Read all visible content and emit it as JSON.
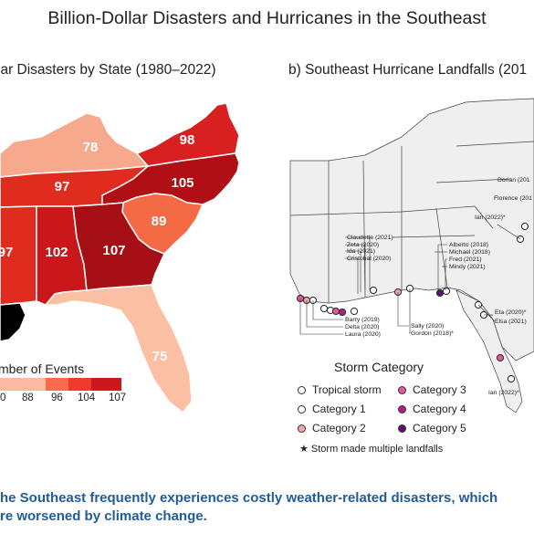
{
  "header": {
    "title": "Billion-Dollar Disasters and Hurricanes in the Southeast"
  },
  "panel_a": {
    "title": "lar Disasters by State (1980–2022)",
    "states": [
      {
        "state": "KY",
        "value": "78",
        "color": "#f6a98c"
      },
      {
        "state": "VA",
        "value": "98",
        "color": "#d7201f"
      },
      {
        "state": "TN",
        "value": "97",
        "color": "#e02c1f"
      },
      {
        "state": "NC",
        "value": "105",
        "color": "#b00f16"
      },
      {
        "state": "SC",
        "value": "89",
        "color": "#f46a45"
      },
      {
        "state": "MS",
        "value": "97",
        "color": "#e02c1f"
      },
      {
        "state": "AL",
        "value": "102",
        "color": "#c9171a"
      },
      {
        "state": "GA",
        "value": "107",
        "color": "#a60f15"
      },
      {
        "state": "FL",
        "value": "75",
        "color": "#fbbfa4"
      }
    ],
    "legend": {
      "title": "mber of Events",
      "ticks": [
        "0",
        "88",
        "96",
        "104",
        "107"
      ]
    }
  },
  "panel_b": {
    "title": "b)  Southeast Hurricane Landfalls (201",
    "storm_labels": [
      {
        "id": "dorian",
        "text": "Dorian (201"
      },
      {
        "id": "florence",
        "text": "Florence (201"
      },
      {
        "id": "ian22",
        "text": "Ian (2022)*"
      },
      {
        "id": "claudette",
        "text": "Claudette (2021)"
      },
      {
        "id": "zeta",
        "text": "Zeta (2020)"
      },
      {
        "id": "ida",
        "text": "Ida (2021)"
      },
      {
        "id": "cristobal",
        "text": "Cristobal (2020)"
      },
      {
        "id": "alberto",
        "text": "Alberto (2018)"
      },
      {
        "id": "michael",
        "text": "Michael (2018)"
      },
      {
        "id": "fred",
        "text": "Fred (2021)"
      },
      {
        "id": "mindy",
        "text": "Mindy (2021)"
      },
      {
        "id": "barry",
        "text": "Barry (2019)"
      },
      {
        "id": "delta",
        "text": "Delta (2020)"
      },
      {
        "id": "laura",
        "text": "Laura (2020)"
      },
      {
        "id": "sally",
        "text": "Sally (2020)"
      },
      {
        "id": "gordon",
        "text": "Gordon (2018)*"
      },
      {
        "id": "eta",
        "text": "Eta (2020)*"
      },
      {
        "id": "elsa",
        "text": "Elsa (2021)"
      },
      {
        "id": "ian2",
        "text": "Ian (2022)*"
      }
    ],
    "legend": {
      "title": "Storm Category",
      "items": [
        {
          "label": "Tropical storm",
          "color": "#ffffff"
        },
        {
          "label": "Category 3",
          "color": "#e8559a"
        },
        {
          "label": "Category 1",
          "color": "#ffffff"
        },
        {
          "label": "Category 4",
          "color": "#b01f86"
        },
        {
          "label": "Category 2",
          "color": "#f2a7a4"
        },
        {
          "label": "Category 5",
          "color": "#5c116a"
        }
      ],
      "note": "★ Storm made multiple landfalls"
    }
  },
  "caption": {
    "line1": "he Southeast frequently experiences costly weather-related disasters, which",
    "line2": "re worsened by climate change."
  }
}
